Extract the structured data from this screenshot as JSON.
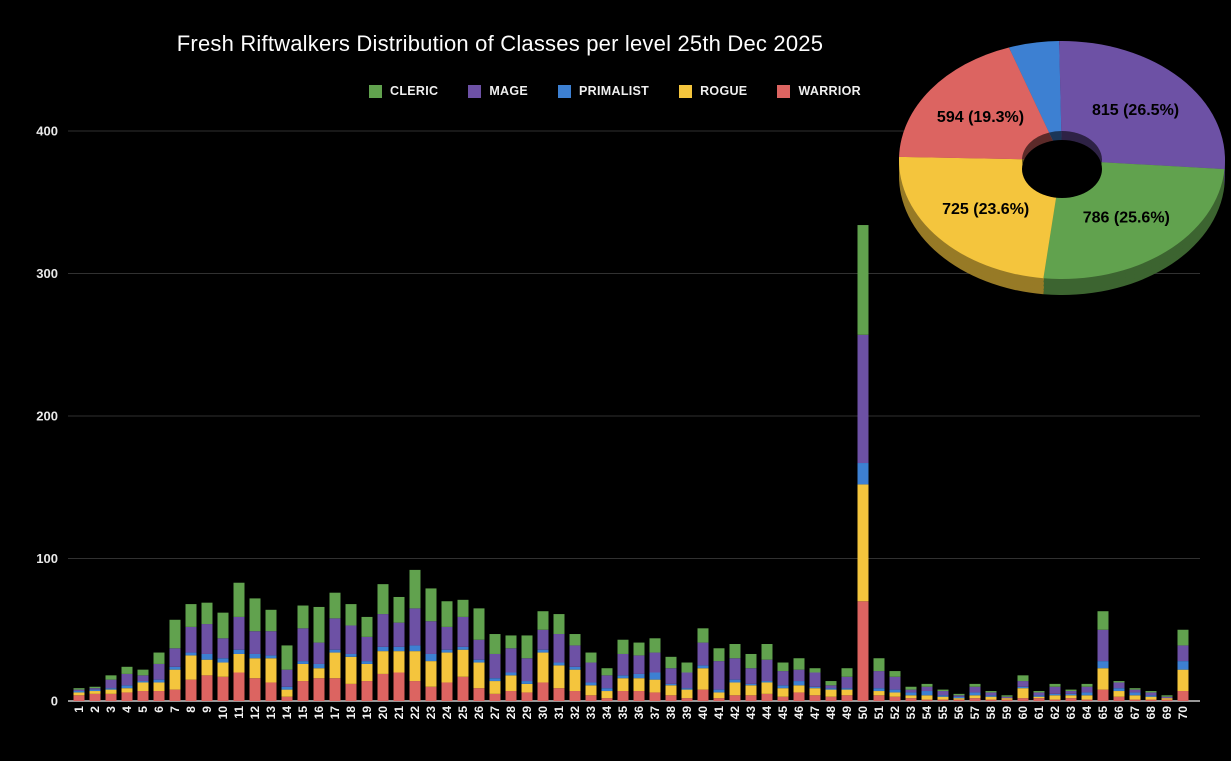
{
  "title": "Fresh Riftwalkers Distribution of Classes per level 25th Dec 2025",
  "colors": {
    "background": "#000000",
    "grid": "#313131",
    "axis_line": "#c9c9c9",
    "axis_text": "#e8e8e8",
    "title_text": "#fdfdfd",
    "pie_label_text": "#000000",
    "cleric": "#61a24e",
    "mage": "#6d51a5",
    "primalist": "#3d80d2",
    "rogue": "#f4c53d",
    "warrior": "#dc6461"
  },
  "legend": [
    {
      "id": "cleric",
      "label": "CLERIC",
      "color": "#61a24e"
    },
    {
      "id": "mage",
      "label": "MAGE",
      "color": "#6d51a5"
    },
    {
      "id": "primalist",
      "label": "PRIMALIST",
      "color": "#3d80d2"
    },
    {
      "id": "rogue",
      "label": "ROGUE",
      "color": "#f4c53d"
    },
    {
      "id": "warrior",
      "label": "WARRIOR",
      "color": "#dc6461"
    }
  ],
  "chart_data": [
    {
      "type": "bar",
      "stacked": true,
      "title": "Fresh Riftwalkers Distribution of Classes per level 25th Dec 2025",
      "xlabel": "",
      "ylabel": "",
      "ylim": [
        0,
        400
      ],
      "yticks": [
        0,
        100,
        200,
        300,
        400
      ],
      "grid": true,
      "legend_position": "top",
      "categories": [
        "1",
        "2",
        "3",
        "4",
        "5",
        "6",
        "7",
        "8",
        "9",
        "10",
        "11",
        "12",
        "13",
        "14",
        "15",
        "16",
        "17",
        "18",
        "19",
        "20",
        "21",
        "22",
        "23",
        "24",
        "25",
        "26",
        "27",
        "28",
        "29",
        "30",
        "31",
        "32",
        "33",
        "34",
        "35",
        "36",
        "37",
        "38",
        "39",
        "40",
        "41",
        "42",
        "43",
        "44",
        "45",
        "46",
        "47",
        "48",
        "49",
        "50",
        "51",
        "52",
        "53",
        "54",
        "55",
        "56",
        "57",
        "58",
        "59",
        "60",
        "61",
        "62",
        "63",
        "64",
        "65",
        "66",
        "67",
        "68",
        "69",
        "70"
      ],
      "series": [
        {
          "name": "WARRIOR",
          "color": "#dc6461",
          "values": [
            4,
            5,
            5,
            6,
            7,
            7,
            8,
            15,
            18,
            17,
            20,
            16,
            13,
            3,
            14,
            16,
            16,
            12,
            14,
            19,
            20,
            14,
            10,
            13,
            17,
            9,
            5,
            7,
            6,
            13,
            9,
            7,
            4,
            2,
            7,
            7,
            6,
            4,
            2,
            8,
            2,
            4,
            4,
            5,
            3,
            6,
            4,
            3,
            4,
            70,
            4,
            3,
            2,
            1,
            1,
            1,
            2,
            1,
            1,
            2,
            2,
            1,
            2,
            1,
            8,
            3,
            1,
            1,
            1,
            7
          ]
        },
        {
          "name": "ROGUE",
          "color": "#f4c53d",
          "values": [
            2,
            2,
            3,
            3,
            6,
            6,
            14,
            17,
            11,
            10,
            13,
            14,
            17,
            5,
            12,
            7,
            18,
            19,
            12,
            16,
            15,
            21,
            18,
            21,
            19,
            18,
            9,
            11,
            6,
            21,
            16,
            15,
            7,
            5,
            9,
            9,
            9,
            7,
            6,
            15,
            4,
            9,
            7,
            8,
            6,
            5,
            5,
            5,
            4,
            82,
            3,
            3,
            2,
            3,
            2,
            1,
            2,
            2,
            1,
            7,
            1,
            3,
            2,
            3,
            15,
            4,
            3,
            2,
            1,
            15
          ]
        },
        {
          "name": "PRIMALIST",
          "color": "#3d80d2",
          "values": [
            1,
            1,
            1,
            2,
            1,
            2,
            2,
            2,
            4,
            3,
            3,
            3,
            2,
            2,
            2,
            3,
            2,
            2,
            2,
            3,
            3,
            4,
            5,
            2,
            2,
            2,
            2,
            2,
            2,
            2,
            2,
            2,
            2,
            2,
            2,
            3,
            5,
            1,
            1,
            2,
            2,
            2,
            1,
            1,
            2,
            3,
            1,
            1,
            1,
            15,
            2,
            2,
            2,
            3,
            1,
            1,
            2,
            1,
            0,
            1,
            1,
            1,
            1,
            2,
            5,
            2,
            2,
            1,
            0,
            6
          ]
        },
        {
          "name": "MAGE",
          "color": "#6d51a5",
          "values": [
            1,
            1,
            6,
            8,
            4,
            11,
            13,
            18,
            21,
            14,
            23,
            16,
            17,
            12,
            23,
            15,
            22,
            20,
            17,
            23,
            17,
            26,
            23,
            16,
            21,
            14,
            17,
            17,
            16,
            14,
            20,
            15,
            14,
            9,
            15,
            13,
            14,
            11,
            11,
            16,
            20,
            15,
            11,
            15,
            10,
            8,
            10,
            2,
            8,
            90,
            12,
            9,
            2,
            3,
            3,
            1,
            4,
            2,
            1,
            4,
            2,
            5,
            2,
            4,
            22,
            4,
            2,
            2,
            1,
            11
          ]
        },
        {
          "name": "CLERIC",
          "color": "#61a24e",
          "values": [
            1,
            1,
            3,
            5,
            4,
            8,
            20,
            16,
            15,
            18,
            24,
            23,
            15,
            17,
            16,
            25,
            18,
            15,
            14,
            21,
            18,
            27,
            23,
            18,
            12,
            22,
            14,
            9,
            16,
            13,
            14,
            8,
            7,
            5,
            10,
            9,
            10,
            8,
            7,
            10,
            9,
            10,
            10,
            11,
            6,
            8,
            3,
            3,
            6,
            77,
            9,
            4,
            2,
            2,
            1,
            1,
            2,
            1,
            1,
            4,
            1,
            2,
            1,
            2,
            13,
            1,
            1,
            1,
            1,
            11
          ]
        }
      ]
    },
    {
      "type": "pie",
      "donut": true,
      "effect": "3d",
      "order": "clockwise",
      "start_angle_deg": -19,
      "slices": [
        {
          "name": "PRIMALIST",
          "color": "#3d80d2",
          "pct": 5.0,
          "label_text": ""
        },
        {
          "name": "MAGE",
          "color": "#6d51a5",
          "value": 815,
          "pct": 26.5,
          "label_text": "815 (26.5%)"
        },
        {
          "name": "CLERIC",
          "color": "#61a24e",
          "value": 786,
          "pct": 25.6,
          "label_text": "786 (25.6%)"
        },
        {
          "name": "ROGUE",
          "color": "#f4c53d",
          "value": 725,
          "pct": 23.6,
          "label_text": "725 (23.6%)"
        },
        {
          "name": "WARRIOR",
          "color": "#dc6461",
          "value": 594,
          "pct": 19.3,
          "label_text": "594 (19.3%)"
        }
      ]
    }
  ]
}
